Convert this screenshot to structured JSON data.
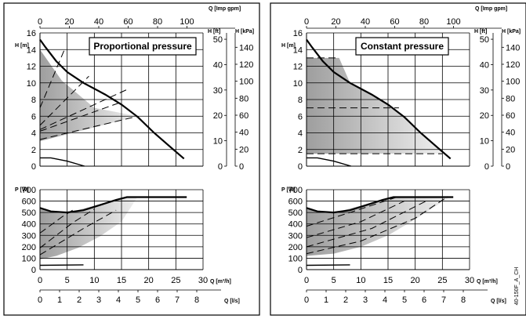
{
  "figure_ref": "40-150F_A_CH",
  "chart_data": [
    {
      "type": "line",
      "title": "Proportional pressure",
      "units": {
        "q_imp": "Q [Imp gpm]",
        "h_ft": "H [ft]",
        "h_kpa": "H [kPa]",
        "h_m": "H [m]",
        "p_w": "P [W]",
        "q_m3h": "Q [m³/h]",
        "q_ls": "Q [l/s]"
      },
      "ticks": {
        "q_imp": [
          "0",
          "20",
          "40",
          "60",
          "80",
          "100"
        ],
        "h_m": [
          "0",
          "2",
          "4",
          "6",
          "8",
          "10",
          "12",
          "14",
          "16"
        ],
        "h_ft": [
          "0",
          "10",
          "20",
          "30",
          "40",
          "50"
        ],
        "h_kpa": [
          "0",
          "20",
          "40",
          "60",
          "80",
          "100",
          "120",
          "140"
        ],
        "p_w": [
          "0",
          "100",
          "200",
          "300",
          "400",
          "500",
          "600",
          "700"
        ],
        "q_m3h": [
          "0",
          "5",
          "10",
          "15",
          "20",
          "25",
          "30"
        ],
        "q_ls": [
          "0",
          "1",
          "2",
          "3",
          "4",
          "5",
          "6",
          "7",
          "8"
        ]
      },
      "head_region": [
        [
          0,
          14
        ],
        [
          4,
          10.3
        ],
        [
          10,
          7
        ],
        [
          18,
          6
        ],
        [
          0,
          3
        ]
      ],
      "head_lines": [
        {
          "style": "bold",
          "points": [
            [
              0,
              15.2
            ],
            [
              1,
              14.3
            ],
            [
              3,
              12.6
            ],
            [
              5,
              11.3
            ],
            [
              8,
              10
            ],
            [
              12,
              8.6
            ],
            [
              15,
              7.4
            ],
            [
              18,
              5.9
            ],
            [
              21,
              4.0
            ],
            [
              24,
              2.3
            ],
            [
              26.5,
              0.9
            ]
          ]
        },
        {
          "style": "dashed",
          "points": [
            [
              0,
              7
            ],
            [
              4.5,
              14
            ]
          ]
        },
        {
          "style": "dashed",
          "points": [
            [
              0,
              4.9
            ],
            [
              9,
              10.8
            ]
          ]
        },
        {
          "style": "dashed",
          "points": [
            [
              0,
              4.4
            ],
            [
              16,
              9.2
            ]
          ]
        },
        {
          "style": "dashed",
          "points": [
            [
              0,
              4.2
            ],
            [
              15,
              7.7
            ]
          ]
        },
        {
          "style": "dashed",
          "points": [
            [
              0,
              3.2
            ],
            [
              18,
              6
            ]
          ]
        },
        {
          "style": "thin",
          "points": [
            [
              0,
              1
            ],
            [
              2,
              1
            ],
            [
              5,
              0.6
            ],
            [
              8.2,
              0
            ]
          ]
        }
      ],
      "power_region": [
        [
          0,
          530
        ],
        [
          3,
          505
        ],
        [
          6,
          510
        ],
        [
          10,
          560
        ],
        [
          15,
          630
        ],
        [
          18,
          640
        ],
        [
          15,
          420
        ],
        [
          11,
          290
        ],
        [
          7,
          190
        ],
        [
          3,
          120
        ],
        [
          0,
          90
        ]
      ],
      "power_lines": [
        {
          "style": "bold",
          "points": [
            [
              0,
              540
            ],
            [
              2,
              510
            ],
            [
              5,
              500
            ],
            [
              8,
              520
            ],
            [
              11,
              565
            ],
            [
              14,
              610
            ],
            [
              16,
              635
            ],
            [
              27,
              635
            ]
          ]
        },
        {
          "style": "dashed",
          "points": [
            [
              0,
              320
            ],
            [
              4,
              460
            ],
            [
              6,
              520
            ]
          ]
        },
        {
          "style": "dashed",
          "points": [
            [
              0,
              190
            ],
            [
              6,
              410
            ],
            [
              10,
              530
            ]
          ]
        },
        {
          "style": "dashed",
          "points": [
            [
              0,
              130
            ],
            [
              8,
              360
            ],
            [
              14,
              520
            ]
          ]
        },
        {
          "style": "thin",
          "points": [
            [
              0,
              38
            ],
            [
              8,
              42
            ]
          ]
        }
      ]
    },
    {
      "type": "line",
      "title": "Constant pressure",
      "units": {
        "q_imp": "Q [Imp gpm]",
        "h_ft": "H [ft]",
        "h_kpa": "H [kPa]",
        "h_m": "H [m]",
        "p_w": "P [W]",
        "q_m3h": "Q [m³/h]",
        "q_ls": "Q [l/s]"
      },
      "ticks": {
        "q_imp": [
          "0",
          "20",
          "40",
          "60",
          "80",
          "100"
        ],
        "h_m": [
          "0",
          "2",
          "4",
          "6",
          "8",
          "10",
          "12",
          "14",
          "16"
        ],
        "h_ft": [
          "0",
          "10",
          "20",
          "30",
          "40",
          "50"
        ],
        "h_kpa": [
          "0",
          "20",
          "40",
          "60",
          "80",
          "100",
          "120",
          "140"
        ],
        "p_w": [
          "0",
          "100",
          "200",
          "300",
          "400",
          "500",
          "600",
          "700"
        ],
        "q_m3h": [
          "0",
          "5",
          "10",
          "15",
          "20",
          "25",
          "30"
        ],
        "q_ls": [
          "0",
          "1",
          "2",
          "3",
          "4",
          "5",
          "6",
          "7",
          "8"
        ]
      },
      "head_region": [
        [
          0,
          13
        ],
        [
          6,
          13
        ],
        [
          8,
          10
        ],
        [
          12,
          8.6
        ],
        [
          15,
          7.4
        ],
        [
          18,
          5.9
        ],
        [
          21,
          4.0
        ],
        [
          24,
          2.3
        ],
        [
          25,
          1.5
        ],
        [
          0,
          1.5
        ]
      ],
      "head_lines": [
        {
          "style": "bold",
          "points": [
            [
              0,
              15.2
            ],
            [
              1,
              14.3
            ],
            [
              3,
              12.6
            ],
            [
              5,
              11.3
            ],
            [
              8,
              10
            ],
            [
              12,
              8.6
            ],
            [
              15,
              7.4
            ],
            [
              18,
              5.9
            ],
            [
              21,
              4.0
            ],
            [
              24,
              2.3
            ],
            [
              26.5,
              0.9
            ]
          ]
        },
        {
          "style": "dashed",
          "points": [
            [
              0,
              13
            ],
            [
              6,
              13
            ]
          ]
        },
        {
          "style": "dashed",
          "points": [
            [
              0,
              7
            ],
            [
              17,
              7
            ]
          ]
        },
        {
          "style": "dashed",
          "points": [
            [
              0,
              1.5
            ],
            [
              25,
              1.5
            ]
          ]
        },
        {
          "style": "thin",
          "points": [
            [
              0,
              1
            ],
            [
              2,
              1
            ],
            [
              5,
              0.6
            ],
            [
              8.2,
              0
            ]
          ]
        }
      ],
      "power_region": [
        [
          0,
          530
        ],
        [
          3,
          505
        ],
        [
          6,
          510
        ],
        [
          10,
          560
        ],
        [
          14,
          620
        ],
        [
          17,
          640
        ],
        [
          26.5,
          640
        ],
        [
          20,
          440
        ],
        [
          15,
          300
        ],
        [
          10,
          200
        ],
        [
          5,
          140
        ],
        [
          0,
          120
        ]
      ],
      "power_lines": [
        {
          "style": "bold",
          "points": [
            [
              0,
              540
            ],
            [
              2,
              510
            ],
            [
              5,
              500
            ],
            [
              8,
              520
            ],
            [
              11,
              565
            ],
            [
              14,
              610
            ],
            [
              16,
              635
            ],
            [
              27,
              635
            ]
          ]
        },
        {
          "style": "dashed",
          "points": [
            [
              0,
              380
            ],
            [
              8,
              500
            ],
            [
              17,
              640
            ]
          ]
        },
        {
          "style": "dashed",
          "points": [
            [
              0,
              280
            ],
            [
              10,
              420
            ],
            [
              18,
              600
            ]
          ]
        },
        {
          "style": "dashed",
          "points": [
            [
              0,
              200
            ],
            [
              12,
              360
            ],
            [
              22,
              600
            ]
          ]
        },
        {
          "style": "dashed",
          "points": [
            [
              0,
              140
            ],
            [
              10,
              250
            ],
            [
              20,
              450
            ],
            [
              26,
              640
            ]
          ]
        },
        {
          "style": "thin",
          "points": [
            [
              0,
              38
            ],
            [
              8,
              42
            ]
          ]
        }
      ]
    }
  ]
}
